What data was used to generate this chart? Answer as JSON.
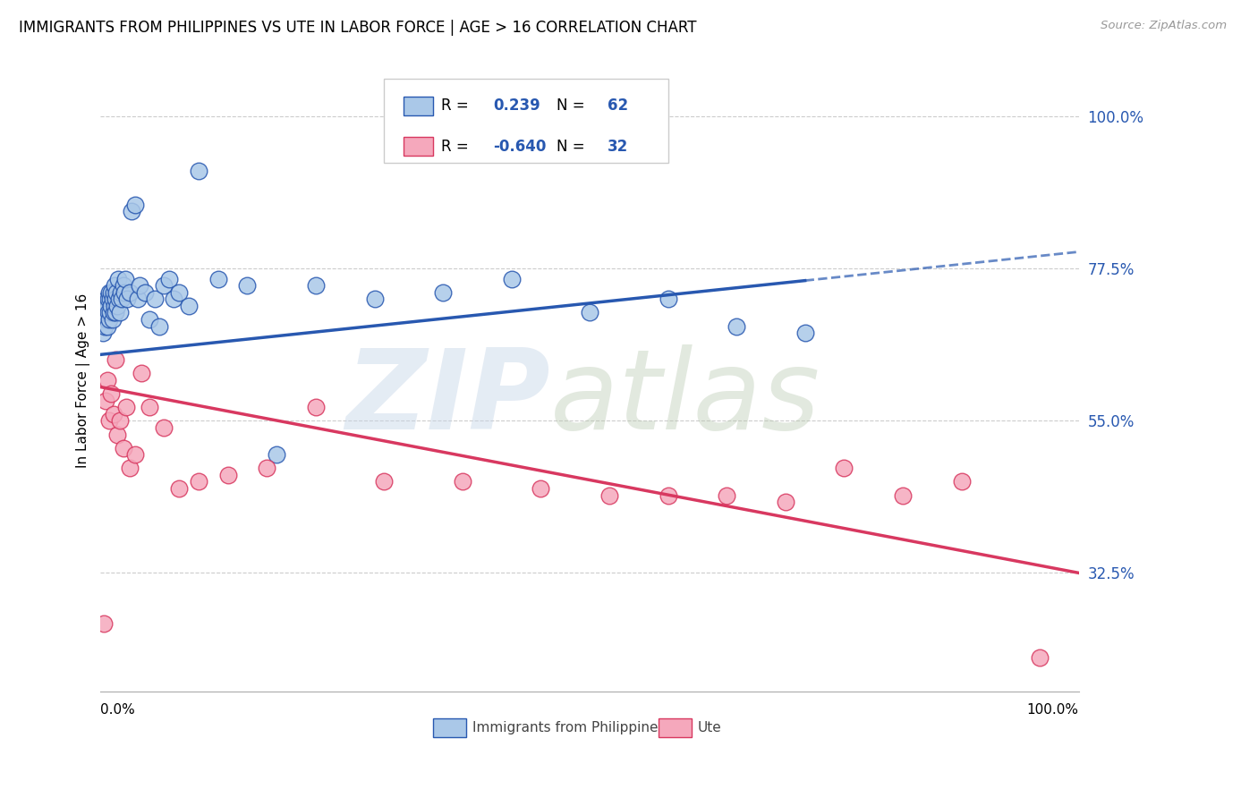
{
  "title": "IMMIGRANTS FROM PHILIPPINES VS UTE IN LABOR FORCE | AGE > 16 CORRELATION CHART",
  "source": "Source: ZipAtlas.com",
  "ylabel": "In Labor Force | Age > 16",
  "yticks": [
    0.325,
    0.55,
    0.775,
    1.0
  ],
  "ytick_labels": [
    "32.5%",
    "55.0%",
    "77.5%",
    "100.0%"
  ],
  "xlim": [
    0.0,
    1.0
  ],
  "ylim": [
    0.15,
    1.07
  ],
  "R_philippines": 0.239,
  "N_philippines": 62,
  "R_ute": -0.64,
  "N_ute": 32,
  "color_philippines": "#aac8e8",
  "color_ute": "#f5a8bc",
  "line_color_philippines": "#2858b0",
  "line_color_ute": "#d83860",
  "philippines_x": [
    0.002,
    0.003,
    0.004,
    0.005,
    0.005,
    0.006,
    0.006,
    0.007,
    0.007,
    0.008,
    0.008,
    0.009,
    0.009,
    0.01,
    0.01,
    0.011,
    0.011,
    0.012,
    0.012,
    0.013,
    0.013,
    0.014,
    0.014,
    0.015,
    0.015,
    0.016,
    0.017,
    0.018,
    0.019,
    0.02,
    0.021,
    0.022,
    0.023,
    0.024,
    0.025,
    0.027,
    0.03,
    0.032,
    0.035,
    0.038,
    0.04,
    0.045,
    0.05,
    0.055,
    0.06,
    0.065,
    0.07,
    0.075,
    0.08,
    0.09,
    0.1,
    0.12,
    0.15,
    0.18,
    0.22,
    0.28,
    0.35,
    0.42,
    0.5,
    0.58,
    0.65,
    0.72
  ],
  "philippines_y": [
    0.68,
    0.7,
    0.69,
    0.71,
    0.72,
    0.7,
    0.73,
    0.69,
    0.72,
    0.71,
    0.73,
    0.7,
    0.74,
    0.71,
    0.73,
    0.72,
    0.74,
    0.7,
    0.73,
    0.71,
    0.74,
    0.72,
    0.75,
    0.71,
    0.73,
    0.74,
    0.72,
    0.76,
    0.73,
    0.71,
    0.74,
    0.73,
    0.75,
    0.74,
    0.76,
    0.73,
    0.74,
    0.86,
    0.87,
    0.73,
    0.75,
    0.74,
    0.7,
    0.73,
    0.69,
    0.75,
    0.76,
    0.73,
    0.74,
    0.72,
    0.92,
    0.76,
    0.75,
    0.5,
    0.75,
    0.73,
    0.74,
    0.76,
    0.71,
    0.73,
    0.69,
    0.68
  ],
  "ute_x": [
    0.003,
    0.005,
    0.007,
    0.009,
    0.011,
    0.013,
    0.015,
    0.017,
    0.02,
    0.023,
    0.026,
    0.03,
    0.035,
    0.042,
    0.05,
    0.065,
    0.08,
    0.1,
    0.13,
    0.17,
    0.22,
    0.29,
    0.37,
    0.45,
    0.52,
    0.58,
    0.64,
    0.7,
    0.76,
    0.82,
    0.88,
    0.96
  ],
  "ute_y": [
    0.25,
    0.58,
    0.61,
    0.55,
    0.59,
    0.56,
    0.64,
    0.53,
    0.55,
    0.51,
    0.57,
    0.48,
    0.5,
    0.62,
    0.57,
    0.54,
    0.45,
    0.46,
    0.47,
    0.48,
    0.57,
    0.46,
    0.46,
    0.45,
    0.44,
    0.44,
    0.44,
    0.43,
    0.48,
    0.44,
    0.46,
    0.2
  ],
  "phil_line_x_solid_end": 0.72,
  "phil_line_start_y": 0.648,
  "phil_line_end_y": 0.8,
  "ute_line_start_y": 0.6,
  "ute_line_end_y": 0.325
}
